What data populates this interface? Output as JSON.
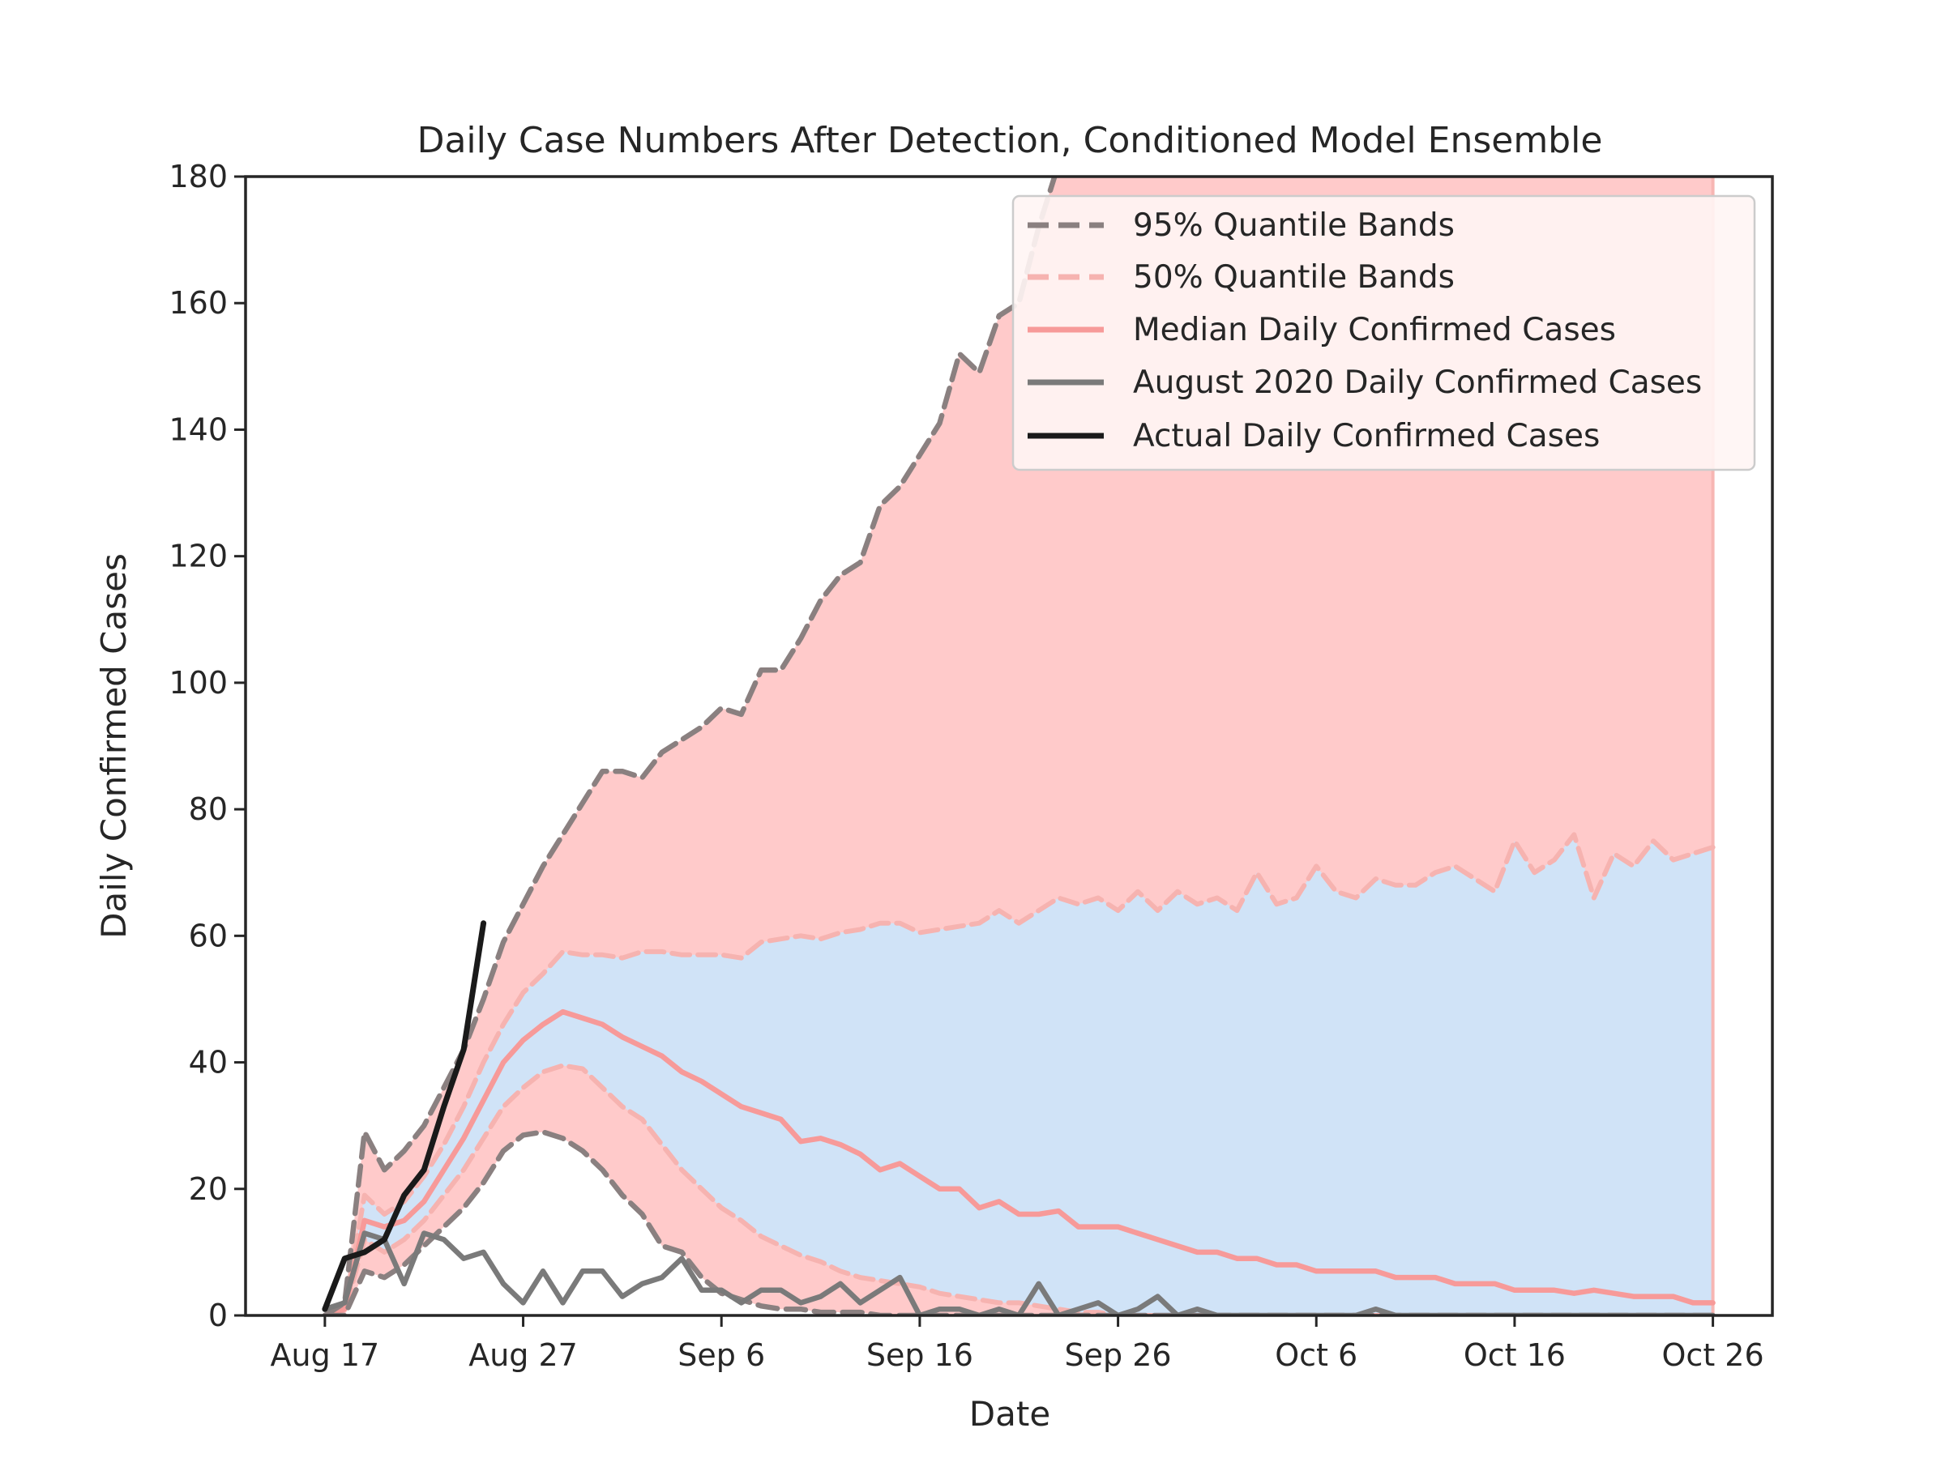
{
  "chart_data": {
    "type": "line",
    "title": "Daily Case Numbers After Detection, Conditioned Model Ensemble",
    "xlabel": "Date",
    "ylabel": "Daily Confirmed Cases",
    "xlim": [
      "2020-08-13",
      "2020-10-29"
    ],
    "ylim": [
      0,
      180
    ],
    "x_tick_dates": [
      "2020-08-17",
      "2020-08-27",
      "2020-09-06",
      "2020-09-16",
      "2020-09-26",
      "2020-10-06",
      "2020-10-16",
      "2020-10-26"
    ],
    "x_tick_labels": [
      "Aug 17",
      "Aug 27",
      "Sep 6",
      "Sep 16",
      "Sep 26",
      "Oct 6",
      "Oct 16",
      "Oct 26"
    ],
    "y_ticks": [
      0,
      20,
      40,
      60,
      80,
      100,
      120,
      140,
      160,
      180
    ],
    "y_tick_labels": [
      "0",
      "20",
      "40",
      "60",
      "80",
      "100",
      "120",
      "140",
      "160",
      "180"
    ],
    "grid": false,
    "legend_placement": "top-right",
    "legend": [
      {
        "label": "95% Quantile Bands",
        "style": "dashed",
        "color": "#8a8080"
      },
      {
        "label": "50% Quantile Bands",
        "style": "dashed",
        "color": "#f6b3b0"
      },
      {
        "label": "Median Daily Confirmed Cases",
        "style": "solid",
        "color": "#f79a99"
      },
      {
        "label": "August 2020 Daily Confirmed Cases",
        "style": "solid",
        "color": "#7a7a7a"
      },
      {
        "label": "Actual Daily Confirmed Cases",
        "style": "solid",
        "color": "#1a1a1a"
      }
    ],
    "colors": {
      "band95_fill": "#ffcaca",
      "band50_fill": "#d0e3f7",
      "band95_line": "#8a8080",
      "band50_line": "#f6b3b0",
      "median": "#f79a99",
      "august2020": "#7a7a7a",
      "actual": "#1a1a1a"
    },
    "series": [
      {
        "name": "95% Quantile Bands",
        "role": "upper95",
        "x": [
          "2020-08-17",
          "2020-08-18",
          "2020-08-19",
          "2020-08-20",
          "2020-08-21",
          "2020-08-22",
          "2020-08-23",
          "2020-08-24",
          "2020-08-25",
          "2020-08-26",
          "2020-08-27",
          "2020-08-28",
          "2020-08-29",
          "2020-08-30",
          "2020-08-31",
          "2020-09-01",
          "2020-09-02",
          "2020-09-03",
          "2020-09-04",
          "2020-09-05",
          "2020-09-06",
          "2020-09-07",
          "2020-09-08",
          "2020-09-09",
          "2020-09-10",
          "2020-09-11",
          "2020-09-12",
          "2020-09-13",
          "2020-09-14",
          "2020-09-15",
          "2020-09-16",
          "2020-09-17",
          "2020-09-18",
          "2020-09-19",
          "2020-09-20",
          "2020-09-21",
          "2020-09-22",
          "2020-09-23"
        ],
        "values": [
          0,
          2,
          29,
          23,
          26,
          30,
          36,
          42,
          50,
          59,
          65,
          71,
          76,
          81,
          86,
          86,
          85,
          89,
          91,
          93,
          96,
          95,
          102,
          102,
          107,
          113,
          117,
          119,
          128,
          131,
          136,
          141,
          152,
          149,
          158,
          160,
          172,
          182
        ]
      },
      {
        "name": "95% Quantile Bands",
        "role": "lower95",
        "x": [
          "2020-08-17",
          "2020-08-18",
          "2020-08-19",
          "2020-08-20",
          "2020-08-21",
          "2020-08-22",
          "2020-08-23",
          "2020-08-24",
          "2020-08-25",
          "2020-08-26",
          "2020-08-27",
          "2020-08-28",
          "2020-08-29",
          "2020-08-30",
          "2020-08-31",
          "2020-09-01",
          "2020-09-02",
          "2020-09-03",
          "2020-09-04",
          "2020-09-05",
          "2020-09-06",
          "2020-09-07",
          "2020-09-08",
          "2020-09-09",
          "2020-09-10",
          "2020-09-11",
          "2020-09-12",
          "2020-09-13",
          "2020-09-14",
          "2020-09-15",
          "2020-09-16",
          "2020-09-17",
          "2020-09-18",
          "2020-09-19",
          "2020-09-20",
          "2020-09-21",
          "2020-09-22",
          "2020-09-23",
          "2020-09-24",
          "2020-09-25",
          "2020-09-26",
          "2020-09-27",
          "2020-09-28",
          "2020-09-29",
          "2020-09-30",
          "2020-10-01",
          "2020-10-02",
          "2020-10-03",
          "2020-10-04",
          "2020-10-05",
          "2020-10-06",
          "2020-10-07",
          "2020-10-08",
          "2020-10-09",
          "2020-10-10",
          "2020-10-11",
          "2020-10-12",
          "2020-10-13",
          "2020-10-14",
          "2020-10-15",
          "2020-10-16",
          "2020-10-17",
          "2020-10-18",
          "2020-10-19",
          "2020-10-20",
          "2020-10-21",
          "2020-10-22",
          "2020-10-23",
          "2020-10-24",
          "2020-10-25",
          "2020-10-26"
        ],
        "values": [
          0,
          0,
          7,
          6,
          8,
          11,
          14,
          17,
          21,
          26,
          28.5,
          29,
          28,
          26,
          23,
          19,
          16,
          11,
          10,
          6,
          3.5,
          2.5,
          1.5,
          1,
          1,
          0.5,
          0.5,
          0.5,
          0,
          0,
          0,
          0,
          0,
          0,
          0,
          0,
          0,
          0,
          0,
          0,
          0,
          0,
          0,
          0,
          0,
          0,
          0,
          0,
          0,
          0,
          0,
          0,
          0,
          0,
          0,
          0,
          0,
          0,
          0,
          0,
          0,
          0,
          0,
          0,
          0,
          0,
          0,
          0,
          0,
          0,
          0
        ]
      },
      {
        "name": "50% Quantile Bands",
        "role": "upper50",
        "x": [
          "2020-08-17",
          "2020-08-18",
          "2020-08-19",
          "2020-08-20",
          "2020-08-21",
          "2020-08-22",
          "2020-08-23",
          "2020-08-24",
          "2020-08-25",
          "2020-08-26",
          "2020-08-27",
          "2020-08-28",
          "2020-08-29",
          "2020-08-30",
          "2020-08-31",
          "2020-09-01",
          "2020-09-02",
          "2020-09-03",
          "2020-09-04",
          "2020-09-05",
          "2020-09-06",
          "2020-09-07",
          "2020-09-08",
          "2020-09-09",
          "2020-09-10",
          "2020-09-11",
          "2020-09-12",
          "2020-09-13",
          "2020-09-14",
          "2020-09-15",
          "2020-09-16",
          "2020-09-17",
          "2020-09-18",
          "2020-09-19",
          "2020-09-20",
          "2020-09-21",
          "2020-09-22",
          "2020-09-23",
          "2020-09-24",
          "2020-09-25",
          "2020-09-26",
          "2020-09-27",
          "2020-09-28",
          "2020-09-29",
          "2020-09-30",
          "2020-10-01",
          "2020-10-02",
          "2020-10-03",
          "2020-10-04",
          "2020-10-05",
          "2020-10-06",
          "2020-10-07",
          "2020-10-08",
          "2020-10-09",
          "2020-10-10",
          "2020-10-11",
          "2020-10-12",
          "2020-10-13",
          "2020-10-14",
          "2020-10-15",
          "2020-10-16",
          "2020-10-17",
          "2020-10-18",
          "2020-10-19",
          "2020-10-20",
          "2020-10-21",
          "2020-10-22",
          "2020-10-23",
          "2020-10-24",
          "2020-10-25",
          "2020-10-26"
        ],
        "values": [
          0,
          1,
          19,
          16,
          18,
          22,
          27,
          33,
          40,
          46,
          51,
          54,
          57.5,
          57,
          57,
          56.5,
          57.5,
          57.5,
          57,
          57,
          57,
          56.5,
          59,
          59.5,
          60,
          59.5,
          60.5,
          61,
          62,
          62,
          60.5,
          61,
          61.5,
          62,
          64,
          62,
          64,
          66,
          65,
          66,
          64,
          67,
          64,
          67,
          65,
          66,
          64,
          70,
          65,
          66,
          71,
          67,
          66,
          69,
          68,
          68,
          70,
          71,
          69,
          67,
          75,
          70,
          72,
          76,
          66,
          73,
          71,
          75,
          72,
          73,
          74
        ]
      },
      {
        "name": "50% Quantile Bands",
        "role": "lower50",
        "x": [
          "2020-08-17",
          "2020-08-18",
          "2020-08-19",
          "2020-08-20",
          "2020-08-21",
          "2020-08-22",
          "2020-08-23",
          "2020-08-24",
          "2020-08-25",
          "2020-08-26",
          "2020-08-27",
          "2020-08-28",
          "2020-08-29",
          "2020-08-30",
          "2020-08-31",
          "2020-09-01",
          "2020-09-02",
          "2020-09-03",
          "2020-09-04",
          "2020-09-05",
          "2020-09-06",
          "2020-09-07",
          "2020-09-08",
          "2020-09-09",
          "2020-09-10",
          "2020-09-11",
          "2020-09-12",
          "2020-09-13",
          "2020-09-14",
          "2020-09-15",
          "2020-09-16",
          "2020-09-17",
          "2020-09-18",
          "2020-09-19",
          "2020-09-20",
          "2020-09-21",
          "2020-09-22",
          "2020-09-23",
          "2020-09-24",
          "2020-09-25",
          "2020-09-26",
          "2020-09-27",
          "2020-09-28",
          "2020-09-29",
          "2020-09-30",
          "2020-10-01",
          "2020-10-02",
          "2020-10-03",
          "2020-10-04",
          "2020-10-05",
          "2020-10-06",
          "2020-10-07",
          "2020-10-08",
          "2020-10-09",
          "2020-10-10",
          "2020-10-11",
          "2020-10-12",
          "2020-10-13",
          "2020-10-14",
          "2020-10-15",
          "2020-10-16",
          "2020-10-17",
          "2020-10-18",
          "2020-10-19",
          "2020-10-20",
          "2020-10-21",
          "2020-10-22",
          "2020-10-23",
          "2020-10-24",
          "2020-10-25",
          "2020-10-26"
        ],
        "values": [
          0,
          0.5,
          12,
          10,
          12,
          15,
          19,
          23,
          28,
          33,
          36,
          38.5,
          39.5,
          39,
          36,
          33,
          31,
          27,
          23,
          20,
          17,
          15,
          12.5,
          11,
          9.5,
          8.5,
          7,
          6,
          5.5,
          5,
          4.5,
          3.5,
          3,
          2.5,
          2,
          2,
          1.5,
          1,
          0.5,
          0.5,
          0,
          0,
          0,
          0,
          0,
          0,
          0,
          0,
          0,
          0,
          0,
          0,
          0,
          0,
          0,
          0,
          0,
          0,
          0,
          0,
          0,
          0,
          0,
          0,
          0,
          0,
          0,
          0,
          0,
          0,
          0
        ]
      },
      {
        "name": "Median Daily Confirmed Cases",
        "role": "median",
        "x": [
          "2020-08-17",
          "2020-08-18",
          "2020-08-19",
          "2020-08-20",
          "2020-08-21",
          "2020-08-22",
          "2020-08-23",
          "2020-08-24",
          "2020-08-25",
          "2020-08-26",
          "2020-08-27",
          "2020-08-28",
          "2020-08-29",
          "2020-08-30",
          "2020-08-31",
          "2020-09-01",
          "2020-09-02",
          "2020-09-03",
          "2020-09-04",
          "2020-09-05",
          "2020-09-06",
          "2020-09-07",
          "2020-09-08",
          "2020-09-09",
          "2020-09-10",
          "2020-09-11",
          "2020-09-12",
          "2020-09-13",
          "2020-09-14",
          "2020-09-15",
          "2020-09-16",
          "2020-09-17",
          "2020-09-18",
          "2020-09-19",
          "2020-09-20",
          "2020-09-21",
          "2020-09-22",
          "2020-09-23",
          "2020-09-24",
          "2020-09-25",
          "2020-09-26",
          "2020-09-27",
          "2020-09-28",
          "2020-09-29",
          "2020-09-30",
          "2020-10-01",
          "2020-10-02",
          "2020-10-03",
          "2020-10-04",
          "2020-10-05",
          "2020-10-06",
          "2020-10-07",
          "2020-10-08",
          "2020-10-09",
          "2020-10-10",
          "2020-10-11",
          "2020-10-12",
          "2020-10-13",
          "2020-10-14",
          "2020-10-15",
          "2020-10-16",
          "2020-10-17",
          "2020-10-18",
          "2020-10-19",
          "2020-10-20",
          "2020-10-21",
          "2020-10-22",
          "2020-10-23",
          "2020-10-24",
          "2020-10-25",
          "2020-10-26"
        ],
        "values": [
          0,
          1,
          15,
          14,
          15,
          18,
          23,
          28,
          34,
          40,
          43.5,
          46,
          48,
          47,
          46,
          44,
          42.5,
          41,
          38.5,
          37,
          35,
          33,
          32,
          31,
          27.5,
          28,
          27,
          25.5,
          23,
          24,
          22,
          20,
          20,
          17,
          18,
          16,
          16,
          16.5,
          14,
          14,
          14,
          13,
          12,
          11,
          10,
          10,
          9,
          9,
          8,
          8,
          7,
          7,
          7,
          7,
          6,
          6,
          6,
          5,
          5,
          5,
          4,
          4,
          4,
          3.5,
          4,
          3.5,
          3,
          3,
          3,
          2,
          2
        ]
      },
      {
        "name": "August 2020 Daily Confirmed Cases",
        "role": "august2020",
        "x": [
          "2020-08-17",
          "2020-08-18",
          "2020-08-19",
          "2020-08-20",
          "2020-08-21",
          "2020-08-22",
          "2020-08-23",
          "2020-08-24",
          "2020-08-25",
          "2020-08-26",
          "2020-08-27",
          "2020-08-28",
          "2020-08-29",
          "2020-08-30",
          "2020-08-31",
          "2020-09-01",
          "2020-09-02",
          "2020-09-03",
          "2020-09-04",
          "2020-09-05",
          "2020-09-06",
          "2020-09-07",
          "2020-09-08",
          "2020-09-09",
          "2020-09-10",
          "2020-09-11",
          "2020-09-12",
          "2020-09-13",
          "2020-09-14",
          "2020-09-15",
          "2020-09-16",
          "2020-09-17",
          "2020-09-18",
          "2020-09-19",
          "2020-09-20",
          "2020-09-21",
          "2020-09-22",
          "2020-09-23",
          "2020-09-24",
          "2020-09-25",
          "2020-09-26",
          "2020-09-27",
          "2020-09-28",
          "2020-09-29",
          "2020-09-30",
          "2020-10-01",
          "2020-10-02",
          "2020-10-03",
          "2020-10-04",
          "2020-10-05",
          "2020-10-06",
          "2020-10-07",
          "2020-10-08",
          "2020-10-09",
          "2020-10-10",
          "2020-10-11",
          "2020-10-12",
          "2020-10-13",
          "2020-10-14",
          "2020-10-15",
          "2020-10-16",
          "2020-10-17",
          "2020-10-18",
          "2020-10-19",
          "2020-10-20",
          "2020-10-21",
          "2020-10-22",
          "2020-10-23",
          "2020-10-24",
          "2020-10-25",
          "2020-10-26"
        ],
        "values": [
          1,
          2,
          13,
          12,
          5,
          13,
          12,
          9,
          10,
          5,
          2,
          7,
          2,
          7,
          7,
          3,
          5,
          6,
          9,
          4,
          4,
          2,
          4,
          4,
          2,
          3,
          5,
          2,
          4,
          6,
          0,
          1,
          1,
          0,
          1,
          0,
          5,
          0,
          1,
          2,
          0,
          1,
          3,
          0,
          1,
          0,
          0,
          0,
          0,
          0,
          0,
          0,
          0,
          1,
          0,
          0,
          0,
          0,
          0,
          0,
          0,
          0,
          0,
          0,
          0,
          0,
          0,
          0,
          0,
          0,
          0
        ]
      },
      {
        "name": "Actual Daily Confirmed Cases",
        "role": "actual",
        "x": [
          "2020-08-17",
          "2020-08-18",
          "2020-08-19",
          "2020-08-20",
          "2020-08-21",
          "2020-08-22",
          "2020-08-23",
          "2020-08-24",
          "2020-08-25"
        ],
        "values": [
          1,
          9,
          10,
          12,
          19,
          23,
          33,
          42,
          62
        ]
      }
    ]
  }
}
